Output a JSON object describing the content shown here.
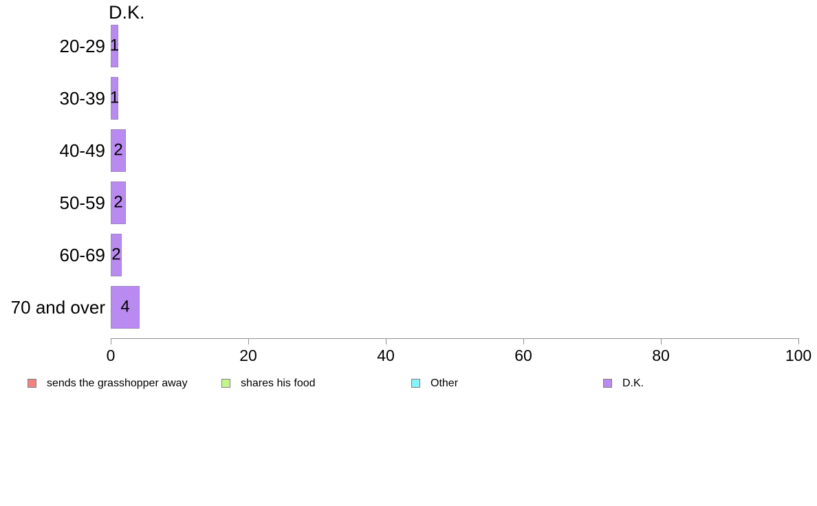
{
  "chart_data": {
    "type": "bar",
    "orientation": "horizontal",
    "title": "D.K.",
    "categories": [
      "20-29",
      "30-39",
      "40-49",
      "50-59",
      "60-69",
      "70 and over"
    ],
    "values": [
      "1",
      "1",
      "2",
      "2",
      "2",
      "4"
    ],
    "bar_lengths_pct": [
      1.1,
      1.1,
      2.2,
      2.2,
      1.6,
      4.2
    ],
    "xlabel": "",
    "ylabel": "",
    "xlim": [
      0,
      100
    ],
    "x_ticks": [
      0,
      20,
      40,
      60,
      80,
      100
    ],
    "x_tick_labels": [
      "0",
      "20",
      "40",
      "60",
      "80",
      "100"
    ],
    "grid": false,
    "legend_position": "bottom",
    "colors": {
      "bar": "#b98aef",
      "bar_border": "#9c85c2",
      "axis": "#909090",
      "text": "#000000",
      "background": "#ffffff"
    },
    "legend": {
      "items": [
        {
          "label": "sends the grasshopper away",
          "color": "#f28282"
        },
        {
          "label": "shares his food",
          "color": "#c4f48c"
        },
        {
          "label": "Other",
          "color": "#87f2f8"
        },
        {
          "label": "D.K.",
          "color": "#b98aef"
        }
      ]
    }
  }
}
